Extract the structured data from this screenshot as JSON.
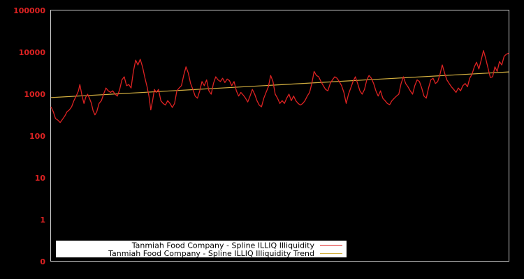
{
  "chart_data": {
    "type": "line",
    "title": "",
    "xlabel": "",
    "ylabel": "",
    "yscale": "log",
    "ylim": [
      0,
      100000
    ],
    "y_ticks": [
      "100000",
      "10000",
      "1000",
      "100",
      "10",
      "1",
      "0"
    ],
    "x_ticks": [],
    "grid": false,
    "legend_position": "bottom-left inside plot",
    "colors": {
      "background": "#000000",
      "frame": "#cccccc",
      "tick_label": "#dd2222",
      "series": "#dd2222",
      "trend": "#d4b040",
      "legend_bg": "#ffffff"
    },
    "series": [
      {
        "name": "Tanmiah Food Company - Spline ILLIQ Illiquidity",
        "color": "#dd2222",
        "note": "values approximate, read off log axis; x = fraction of plot width",
        "points": [
          [
            0.0,
            500
          ],
          [
            0.005,
            380
          ],
          [
            0.01,
            260
          ],
          [
            0.015,
            240
          ],
          [
            0.02,
            210
          ],
          [
            0.025,
            250
          ],
          [
            0.03,
            300
          ],
          [
            0.035,
            380
          ],
          [
            0.04,
            420
          ],
          [
            0.045,
            500
          ],
          [
            0.05,
            700
          ],
          [
            0.055,
            900
          ],
          [
            0.06,
            1200
          ],
          [
            0.063,
            1700
          ],
          [
            0.068,
            900
          ],
          [
            0.072,
            600
          ],
          [
            0.076,
            850
          ],
          [
            0.08,
            1000
          ],
          [
            0.084,
            800
          ],
          [
            0.088,
            620
          ],
          [
            0.092,
            400
          ],
          [
            0.096,
            320
          ],
          [
            0.1,
            380
          ],
          [
            0.105,
            600
          ],
          [
            0.11,
            700
          ],
          [
            0.115,
            1000
          ],
          [
            0.12,
            1400
          ],
          [
            0.125,
            1200
          ],
          [
            0.13,
            1100
          ],
          [
            0.135,
            1200
          ],
          [
            0.14,
            1000
          ],
          [
            0.145,
            900
          ],
          [
            0.15,
            1300
          ],
          [
            0.155,
            2200
          ],
          [
            0.16,
            2600
          ],
          [
            0.165,
            1600
          ],
          [
            0.17,
            1700
          ],
          [
            0.175,
            1400
          ],
          [
            0.18,
            3500
          ],
          [
            0.185,
            6500
          ],
          [
            0.19,
            5000
          ],
          [
            0.195,
            6800
          ],
          [
            0.2,
            4500
          ],
          [
            0.205,
            2500
          ],
          [
            0.21,
            1500
          ],
          [
            0.214,
            900
          ],
          [
            0.218,
            420
          ],
          [
            0.222,
            700
          ],
          [
            0.226,
            1300
          ],
          [
            0.23,
            1100
          ],
          [
            0.235,
            1300
          ],
          [
            0.24,
            700
          ],
          [
            0.245,
            600
          ],
          [
            0.25,
            550
          ],
          [
            0.255,
            700
          ],
          [
            0.26,
            600
          ],
          [
            0.265,
            480
          ],
          [
            0.27,
            600
          ],
          [
            0.275,
            1200
          ],
          [
            0.28,
            1400
          ],
          [
            0.285,
            1600
          ],
          [
            0.29,
            2800
          ],
          [
            0.295,
            4500
          ],
          [
            0.3,
            3200
          ],
          [
            0.305,
            1800
          ],
          [
            0.31,
            1300
          ],
          [
            0.315,
            900
          ],
          [
            0.32,
            800
          ],
          [
            0.325,
            1200
          ],
          [
            0.33,
            2000
          ],
          [
            0.335,
            1600
          ],
          [
            0.34,
            2200
          ],
          [
            0.345,
            1200
          ],
          [
            0.35,
            1000
          ],
          [
            0.355,
            1800
          ],
          [
            0.36,
            2600
          ],
          [
            0.365,
            2200
          ],
          [
            0.37,
            2000
          ],
          [
            0.375,
            2400
          ],
          [
            0.38,
            1900
          ],
          [
            0.385,
            2300
          ],
          [
            0.39,
            2100
          ],
          [
            0.395,
            1600
          ],
          [
            0.4,
            2000
          ],
          [
            0.405,
            1200
          ],
          [
            0.41,
            900
          ],
          [
            0.415,
            1100
          ],
          [
            0.42,
            950
          ],
          [
            0.425,
            800
          ],
          [
            0.43,
            650
          ],
          [
            0.435,
            900
          ],
          [
            0.44,
            1300
          ],
          [
            0.445,
            1000
          ],
          [
            0.45,
            700
          ],
          [
            0.455,
            550
          ],
          [
            0.46,
            500
          ],
          [
            0.465,
            800
          ],
          [
            0.47,
            1100
          ],
          [
            0.475,
            1500
          ],
          [
            0.48,
            2800
          ],
          [
            0.485,
            2000
          ],
          [
            0.49,
            1000
          ],
          [
            0.495,
            800
          ],
          [
            0.5,
            600
          ],
          [
            0.505,
            700
          ],
          [
            0.51,
            600
          ],
          [
            0.515,
            800
          ],
          [
            0.52,
            1000
          ],
          [
            0.525,
            700
          ],
          [
            0.53,
            900
          ],
          [
            0.535,
            700
          ],
          [
            0.54,
            600
          ],
          [
            0.545,
            550
          ],
          [
            0.55,
            600
          ],
          [
            0.555,
            700
          ],
          [
            0.56,
            900
          ],
          [
            0.565,
            1100
          ],
          [
            0.57,
            1800
          ],
          [
            0.575,
            3500
          ],
          [
            0.58,
            2800
          ],
          [
            0.585,
            2600
          ],
          [
            0.59,
            2000
          ],
          [
            0.595,
            1600
          ],
          [
            0.6,
            1300
          ],
          [
            0.605,
            1200
          ],
          [
            0.61,
            1800
          ],
          [
            0.615,
            2200
          ],
          [
            0.62,
            2600
          ],
          [
            0.625,
            2400
          ],
          [
            0.63,
            2000
          ],
          [
            0.635,
            1600
          ],
          [
            0.64,
            1100
          ],
          [
            0.645,
            600
          ],
          [
            0.65,
            1000
          ],
          [
            0.655,
            1400
          ],
          [
            0.66,
            2000
          ],
          [
            0.665,
            2600
          ],
          [
            0.67,
            1800
          ],
          [
            0.675,
            1200
          ],
          [
            0.68,
            1000
          ],
          [
            0.685,
            1300
          ],
          [
            0.69,
            2200
          ],
          [
            0.695,
            2800
          ],
          [
            0.7,
            2400
          ],
          [
            0.705,
            1800
          ],
          [
            0.71,
            1200
          ],
          [
            0.715,
            900
          ],
          [
            0.72,
            1200
          ],
          [
            0.725,
            800
          ],
          [
            0.73,
            700
          ],
          [
            0.735,
            600
          ],
          [
            0.74,
            560
          ],
          [
            0.745,
            700
          ],
          [
            0.75,
            800
          ],
          [
            0.755,
            900
          ],
          [
            0.76,
            1000
          ],
          [
            0.765,
            1800
          ],
          [
            0.77,
            2600
          ],
          [
            0.775,
            1800
          ],
          [
            0.78,
            1500
          ],
          [
            0.785,
            1200
          ],
          [
            0.79,
            1000
          ],
          [
            0.795,
            1600
          ],
          [
            0.8,
            2200
          ],
          [
            0.805,
            2000
          ],
          [
            0.81,
            1400
          ],
          [
            0.815,
            900
          ],
          [
            0.82,
            800
          ],
          [
            0.825,
            1400
          ],
          [
            0.83,
            2200
          ],
          [
            0.835,
            2400
          ],
          [
            0.84,
            1800
          ],
          [
            0.845,
            2000
          ],
          [
            0.85,
            3000
          ],
          [
            0.855,
            5000
          ],
          [
            0.86,
            3200
          ],
          [
            0.865,
            2200
          ],
          [
            0.87,
            1800
          ],
          [
            0.875,
            1500
          ],
          [
            0.88,
            1300
          ],
          [
            0.885,
            1100
          ],
          [
            0.89,
            1400
          ],
          [
            0.895,
            1200
          ],
          [
            0.9,
            1600
          ],
          [
            0.905,
            1800
          ],
          [
            0.91,
            1500
          ],
          [
            0.915,
            2400
          ],
          [
            0.92,
            3000
          ],
          [
            0.925,
            4500
          ],
          [
            0.93,
            5800
          ],
          [
            0.935,
            4000
          ],
          [
            0.94,
            6500
          ],
          [
            0.945,
            11000
          ],
          [
            0.95,
            7000
          ],
          [
            0.955,
            4200
          ],
          [
            0.96,
            2500
          ],
          [
            0.965,
            2600
          ],
          [
            0.97,
            4500
          ],
          [
            0.975,
            3500
          ],
          [
            0.98,
            6000
          ],
          [
            0.985,
            5000
          ],
          [
            0.99,
            8000
          ],
          [
            0.995,
            9000
          ],
          [
            1.0,
            9500
          ]
        ]
      },
      {
        "name": "Tanmiah Food Company - Spline ILLIQ Illiquidity Trend",
        "color": "#d4b040",
        "points": [
          [
            0.0,
            830
          ],
          [
            1.0,
            3400
          ]
        ]
      }
    ]
  },
  "legend": {
    "items": [
      {
        "label": "Tanmiah Food Company - Spline ILLIQ Illiquidity",
        "color": "#dd2222"
      },
      {
        "label": "Tanmiah Food Company - Spline ILLIQ Illiquidity Trend",
        "color": "#d4b040"
      }
    ]
  }
}
